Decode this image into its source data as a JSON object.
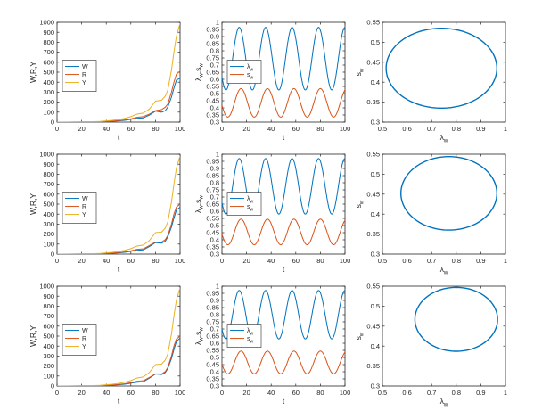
{
  "colors": {
    "W": "#0072BD",
    "R": "#D95319",
    "Y": "#EDB120",
    "axis": "#262626"
  },
  "chart_data": [
    {
      "type": "line",
      "title": "",
      "xlabel": "t",
      "ylabel": "W,R,Y",
      "xlim": [
        0,
        100
      ],
      "ylim": [
        0,
        1000
      ],
      "xticks": [
        "0",
        "20",
        "40",
        "60",
        "80",
        "100"
      ],
      "yticks": [
        "0",
        "100",
        "200",
        "300",
        "400",
        "500",
        "600",
        "700",
        "800",
        "900",
        "1000"
      ],
      "legend": {
        "position": "middle-left",
        "entries": [
          "W",
          "R",
          "Y"
        ]
      },
      "x": [
        0,
        10,
        20,
        30,
        35,
        40,
        45,
        50,
        55,
        60,
        65,
        70,
        75,
        80,
        85,
        88,
        90,
        93,
        95,
        97,
        100
      ],
      "series": [
        {
          "name": "W",
          "values": [
            0,
            0,
            1,
            2,
            3,
            5,
            8,
            12,
            18,
            28,
            38,
            42,
            70,
            110,
            100,
            115,
            150,
            250,
            340,
            420,
            440
          ]
        },
        {
          "name": "R",
          "values": [
            0,
            0,
            1,
            2,
            4,
            7,
            11,
            16,
            22,
            33,
            48,
            55,
            80,
            115,
            125,
            150,
            180,
            300,
            400,
            480,
            510
          ]
        },
        {
          "name": "Y",
          "values": [
            0,
            1,
            2,
            4,
            7,
            12,
            18,
            26,
            38,
            55,
            80,
            90,
            130,
            210,
            220,
            260,
            320,
            520,
            700,
            860,
            990
          ]
        }
      ]
    },
    {
      "type": "line",
      "title": "",
      "xlabel": "t",
      "ylabel": "λw,sw",
      "xlim": [
        0,
        100
      ],
      "ylim": [
        0.3,
        1
      ],
      "xticks": [
        "0",
        "20",
        "40",
        "60",
        "80",
        "100"
      ],
      "yticks": [
        "0.3",
        "0.35",
        "0.4",
        "0.45",
        "0.5",
        "0.55",
        "0.6",
        "0.65",
        "0.7",
        "0.75",
        "0.8",
        "0.85",
        "0.9",
        "0.95",
        "1"
      ],
      "legend": {
        "position": "middle-left",
        "entries": [
          "λw",
          "sw"
        ]
      },
      "series": [
        {
          "name": "λw",
          "form": "sinusoid",
          "mean": 0.745,
          "amplitude": 0.22,
          "period": 21.5,
          "peak_t": 14
        },
        {
          "name": "sw",
          "form": "sinusoid",
          "mean": 0.435,
          "amplitude": 0.1,
          "period": 21.5,
          "peak_t": 15.5
        }
      ]
    },
    {
      "type": "line",
      "title": "",
      "xlabel": "λw",
      "ylabel": "sw",
      "xlim": [
        0.5,
        1
      ],
      "ylim": [
        0.3,
        0.55
      ],
      "xticks": [
        "0.5",
        "0.6",
        "0.7",
        "0.8",
        "0.9",
        "1"
      ],
      "yticks": [
        "0.3",
        "0.35",
        "0.4",
        "0.45",
        "0.5",
        "0.55"
      ],
      "series": [
        {
          "name": "orbit",
          "form": "ellipse",
          "center": [
            0.74,
            0.435
          ],
          "radii": [
            0.225,
            0.1
          ]
        }
      ]
    },
    {
      "type": "line",
      "title": "",
      "xlabel": "t",
      "ylabel": "W,R,Y",
      "xlim": [
        0,
        100
      ],
      "ylim": [
        0,
        1000
      ],
      "xticks": [
        "0",
        "20",
        "40",
        "60",
        "80",
        "100"
      ],
      "yticks": [
        "0",
        "100",
        "200",
        "300",
        "400",
        "500",
        "600",
        "700",
        "800",
        "900",
        "1000"
      ],
      "legend": {
        "position": "lower-left",
        "entries": [
          "W",
          "R",
          "Y"
        ]
      },
      "x": [
        0,
        10,
        20,
        30,
        35,
        40,
        45,
        50,
        55,
        60,
        65,
        70,
        75,
        80,
        85,
        88,
        90,
        93,
        95,
        97,
        100
      ],
      "series": [
        {
          "name": "W",
          "values": [
            0,
            0,
            1,
            2,
            3,
            5,
            8,
            12,
            18,
            28,
            38,
            42,
            75,
            115,
            110,
            130,
            170,
            270,
            360,
            440,
            470
          ]
        },
        {
          "name": "R",
          "values": [
            0,
            0,
            1,
            2,
            4,
            7,
            11,
            16,
            22,
            33,
            48,
            52,
            85,
            120,
            120,
            145,
            185,
            300,
            400,
            470,
            500
          ]
        },
        {
          "name": "Y",
          "values": [
            0,
            1,
            2,
            4,
            7,
            12,
            18,
            26,
            38,
            55,
            80,
            90,
            135,
            215,
            220,
            260,
            320,
            520,
            700,
            860,
            985
          ]
        }
      ]
    },
    {
      "type": "line",
      "title": "",
      "xlabel": "t",
      "ylabel": "λw,sw",
      "xlim": [
        0,
        100
      ],
      "ylim": [
        0.3,
        1
      ],
      "xticks": [
        "0",
        "20",
        "40",
        "60",
        "80",
        "100"
      ],
      "yticks": [
        "0.3",
        "0.35",
        "0.4",
        "0.45",
        "0.5",
        "0.55",
        "0.6",
        "0.65",
        "0.7",
        "0.75",
        "0.8",
        "0.85",
        "0.9",
        "0.95",
        "1"
      ],
      "legend": {
        "position": "lower-left",
        "entries": [
          "λw",
          "sw"
        ]
      },
      "series": [
        {
          "name": "λw",
          "form": "sinusoid",
          "mean": 0.775,
          "amplitude": 0.195,
          "period": 21.5,
          "peak_t": 14
        },
        {
          "name": "sw",
          "form": "sinusoid",
          "mean": 0.455,
          "amplitude": 0.09,
          "period": 21.5,
          "peak_t": 15.5
        }
      ]
    },
    {
      "type": "line",
      "title": "",
      "xlabel": "λw",
      "ylabel": "sw",
      "xlim": [
        0.5,
        1
      ],
      "ylim": [
        0.3,
        0.55
      ],
      "xticks": [
        "0.5",
        "0.6",
        "0.7",
        "0.8",
        "0.9",
        "1"
      ],
      "yticks": [
        "0.3",
        "0.35",
        "0.4",
        "0.45",
        "0.5",
        "0.55"
      ],
      "series": [
        {
          "name": "orbit",
          "form": "ellipse",
          "center": [
            0.77,
            0.452
          ],
          "radii": [
            0.195,
            0.092
          ]
        }
      ]
    },
    {
      "type": "line",
      "title": "",
      "xlabel": "t",
      "ylabel": "W,R,Y",
      "xlim": [
        0,
        100
      ],
      "ylim": [
        0,
        1000
      ],
      "xticks": [
        "0",
        "20",
        "40",
        "60",
        "80",
        "100"
      ],
      "yticks": [
        "0",
        "100",
        "200",
        "300",
        "400",
        "500",
        "600",
        "700",
        "800",
        "900",
        "1000"
      ],
      "legend": {
        "position": "lower-left",
        "entries": [
          "W",
          "R",
          "Y"
        ]
      },
      "x": [
        0,
        10,
        20,
        30,
        35,
        40,
        45,
        50,
        55,
        60,
        65,
        70,
        75,
        80,
        85,
        88,
        90,
        93,
        95,
        97,
        100
      ],
      "series": [
        {
          "name": "W",
          "values": [
            0,
            0,
            1,
            2,
            3,
            5,
            8,
            12,
            18,
            28,
            38,
            42,
            78,
            120,
            115,
            135,
            175,
            275,
            365,
            445,
            480
          ]
        },
        {
          "name": "R",
          "values": [
            0,
            0,
            1,
            2,
            4,
            7,
            11,
            16,
            22,
            33,
            48,
            52,
            85,
            122,
            120,
            145,
            185,
            300,
            400,
            470,
            500
          ]
        },
        {
          "name": "Y",
          "values": [
            0,
            1,
            2,
            4,
            7,
            12,
            18,
            26,
            38,
            55,
            80,
            90,
            135,
            215,
            220,
            260,
            320,
            520,
            700,
            860,
            985
          ]
        }
      ]
    },
    {
      "type": "line",
      "title": "",
      "xlabel": "t",
      "ylabel": "λw,sw",
      "xlim": [
        0,
        100
      ],
      "ylim": [
        0.3,
        1
      ],
      "xticks": [
        "0",
        "20",
        "40",
        "60",
        "80",
        "100"
      ],
      "yticks": [
        "0.3",
        "0.35",
        "0.4",
        "0.45",
        "0.5",
        "0.55",
        "0.6",
        "0.65",
        "0.7",
        "0.75",
        "0.8",
        "0.85",
        "0.9",
        "0.95",
        "1"
      ],
      "legend": {
        "position": "lower-left",
        "entries": [
          "λw",
          "sw"
        ]
      },
      "series": [
        {
          "name": "λw",
          "form": "sinusoid",
          "mean": 0.8,
          "amplitude": 0.17,
          "period": 21.5,
          "peak_t": 14
        },
        {
          "name": "sw",
          "form": "sinusoid",
          "mean": 0.465,
          "amplitude": 0.08,
          "period": 21.5,
          "peak_t": 15.5
        }
      ]
    },
    {
      "type": "line",
      "title": "",
      "xlabel": "λw",
      "ylabel": "sw",
      "xlim": [
        0.5,
        1
      ],
      "ylim": [
        0.3,
        0.55
      ],
      "xticks": [
        "0.5",
        "0.6",
        "0.7",
        "0.8",
        "0.9",
        "1"
      ],
      "yticks": [
        "0.3",
        "0.35",
        "0.4",
        "0.45",
        "0.5",
        "0.55"
      ],
      "series": [
        {
          "name": "orbit",
          "form": "ellipse",
          "center": [
            0.8,
            0.467
          ],
          "radii": [
            0.168,
            0.08
          ]
        }
      ]
    }
  ]
}
